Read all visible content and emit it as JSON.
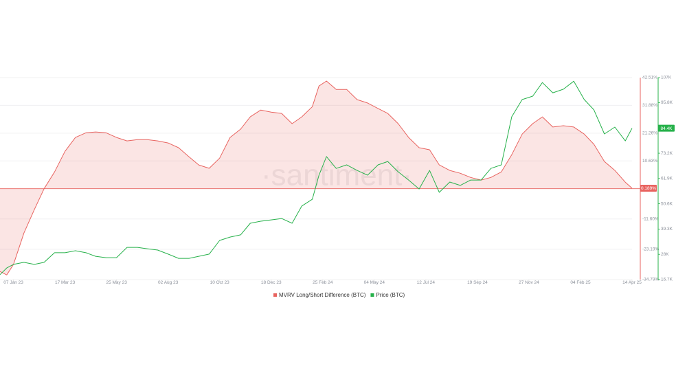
{
  "watermark": "·santiment·",
  "chart_data": {
    "type": "line",
    "x": [
      "2022-12-20",
      "2022-12-29",
      "2023-01-07",
      "2023-01-21",
      "2023-02-04",
      "2023-02-17",
      "2023-03-03",
      "2023-03-17",
      "2023-03-31",
      "2023-04-14",
      "2023-04-27",
      "2023-05-11",
      "2023-05-25",
      "2023-06-08",
      "2023-06-22",
      "2023-07-05",
      "2023-07-19",
      "2023-08-02",
      "2023-08-16",
      "2023-08-30",
      "2023-09-12",
      "2023-09-26",
      "2023-10-10",
      "2023-10-24",
      "2023-11-07",
      "2023-11-20",
      "2023-12-04",
      "2023-12-18",
      "2024-01-01",
      "2024-01-15",
      "2024-01-28",
      "2024-02-11",
      "2024-02-20",
      "2024-03-01",
      "2024-03-14",
      "2024-03-28",
      "2024-04-11",
      "2024-04-25",
      "2024-05-09",
      "2024-05-22",
      "2024-06-05",
      "2024-06-19",
      "2024-07-03",
      "2024-07-17",
      "2024-07-30",
      "2024-08-13",
      "2024-08-27",
      "2024-09-10",
      "2024-09-24",
      "2024-10-07",
      "2024-10-21",
      "2024-11-04",
      "2024-11-18",
      "2024-12-02",
      "2024-12-15",
      "2024-12-29",
      "2025-01-12",
      "2025-01-26",
      "2025-02-09",
      "2025-02-22",
      "2025-03-08",
      "2025-03-22",
      "2025-04-05",
      "2025-04-14"
    ],
    "xlim": [
      "2022-12-20",
      "2025-04-14"
    ],
    "xticks": [
      {
        "value": "2023-01-07",
        "label": "07 Jan 23"
      },
      {
        "value": "2023-03-17",
        "label": "17 Mar 23"
      },
      {
        "value": "2023-05-25",
        "label": "25 May 23"
      },
      {
        "value": "2023-08-02",
        "label": "02 Aug 23"
      },
      {
        "value": "2023-10-10",
        "label": "10 Oct 23"
      },
      {
        "value": "2023-12-18",
        "label": "18 Dec 23"
      },
      {
        "value": "2024-02-25",
        "label": "25 Feb 24"
      },
      {
        "value": "2024-05-04",
        "label": "04 May 24"
      },
      {
        "value": "2024-07-12",
        "label": "12 Jul 24"
      },
      {
        "value": "2024-09-19",
        "label": "19 Sep 24"
      },
      {
        "value": "2024-11-27",
        "label": "27 Nov 24"
      },
      {
        "value": "2025-02-04",
        "label": "04 Feb 25"
      },
      {
        "value": "2025-04-14",
        "label": "14 Apr 25"
      }
    ],
    "ylim": [
      -34.79,
      42.51
    ],
    "yticks": [
      {
        "value": 42.51,
        "label": "42.51%"
      },
      {
        "value": 31.88,
        "label": "31.88%"
      },
      {
        "value": 21.26,
        "label": "21.26%"
      },
      {
        "value": 10.63,
        "label": "10.63%"
      },
      {
        "value": -11.6,
        "label": "-11.60%"
      },
      {
        "value": -23.19,
        "label": "-23.19%"
      },
      {
        "value": -34.79,
        "label": "-34.79%"
      }
    ],
    "y2lim": [
      16700,
      107000
    ],
    "y2ticks": [
      {
        "value": 107000,
        "label": "107K"
      },
      {
        "value": 95800,
        "label": "95.8K"
      },
      {
        "value": 73200,
        "label": "73.2K"
      },
      {
        "value": 61900,
        "label": "61.9K"
      },
      {
        "value": 50600,
        "label": "50.6K"
      },
      {
        "value": 39300,
        "label": "39.3K"
      },
      {
        "value": 28000,
        "label": "28K"
      },
      {
        "value": 16700,
        "label": "16.7K"
      }
    ],
    "grid": true,
    "legend": "bottom",
    "series": [
      {
        "name": "MVRV Long/Short Difference (BTC)",
        "color": "#e8635f",
        "area": true,
        "values": [
          -31.7,
          -33,
          -29,
          -17,
          -8,
          0,
          6.4,
          14.3,
          19.6,
          21.4,
          21.7,
          21.4,
          19.6,
          18.3,
          18.8,
          18.8,
          18.3,
          17.5,
          15.7,
          12.2,
          9.1,
          7.8,
          11.7,
          19.6,
          22.8,
          27.5,
          30.1,
          29.3,
          28.8,
          24.9,
          27.5,
          31.4,
          39.3,
          41.2,
          38,
          38,
          34.1,
          32.8,
          30.7,
          28.8,
          24.9,
          19.6,
          15.7,
          14.9,
          9.1,
          7,
          5.9,
          4.3,
          3.3,
          4.3,
          6.4,
          13,
          20.9,
          24.9,
          27.5,
          23.6,
          24.1,
          23.6,
          20.9,
          17,
          10.4,
          7,
          2.5,
          0.189
        ],
        "value_labels": [
          null,
          null,
          null,
          null,
          null,
          null,
          null,
          null,
          null,
          null,
          null,
          null,
          null,
          null,
          null,
          null,
          null,
          null,
          null,
          null,
          null,
          null,
          null,
          null,
          null,
          null,
          null,
          null,
          null,
          null,
          null,
          null,
          null,
          null,
          null,
          null,
          null,
          null,
          null,
          null,
          null,
          null,
          null,
          null,
          null,
          null,
          null,
          null,
          null,
          null,
          null,
          null,
          null,
          null,
          null,
          null,
          null,
          null,
          null,
          null,
          null,
          null,
          null,
          "0.189%"
        ]
      },
      {
        "name": "Price (BTC)",
        "color": "#26b14a",
        "axis": "y2",
        "values": [
          18900,
          21900,
          23500,
          24400,
          23500,
          24400,
          28700,
          28700,
          29600,
          28700,
          27100,
          26500,
          26500,
          31100,
          31100,
          30500,
          29900,
          28100,
          26200,
          26200,
          27100,
          28100,
          34200,
          35700,
          36700,
          41900,
          42800,
          43400,
          44000,
          41900,
          49600,
          52600,
          63400,
          71700,
          66400,
          68000,
          65500,
          63400,
          68000,
          69500,
          64900,
          61200,
          57200,
          65500,
          55700,
          60300,
          58800,
          61200,
          61200,
          66400,
          68000,
          89500,
          97200,
          98700,
          104800,
          100200,
          101800,
          105400,
          97200,
          92600,
          81800,
          84900,
          78700,
          84400
        ],
        "value_labels": [
          null,
          null,
          null,
          null,
          null,
          null,
          null,
          null,
          null,
          null,
          null,
          null,
          null,
          null,
          null,
          null,
          null,
          null,
          null,
          null,
          null,
          null,
          null,
          null,
          null,
          null,
          null,
          null,
          null,
          null,
          null,
          null,
          null,
          null,
          null,
          null,
          null,
          null,
          null,
          null,
          null,
          null,
          null,
          null,
          null,
          null,
          null,
          null,
          null,
          null,
          null,
          null,
          null,
          null,
          null,
          null,
          null,
          null,
          null,
          null,
          null,
          null,
          null,
          "84.4K"
        ]
      }
    ]
  }
}
